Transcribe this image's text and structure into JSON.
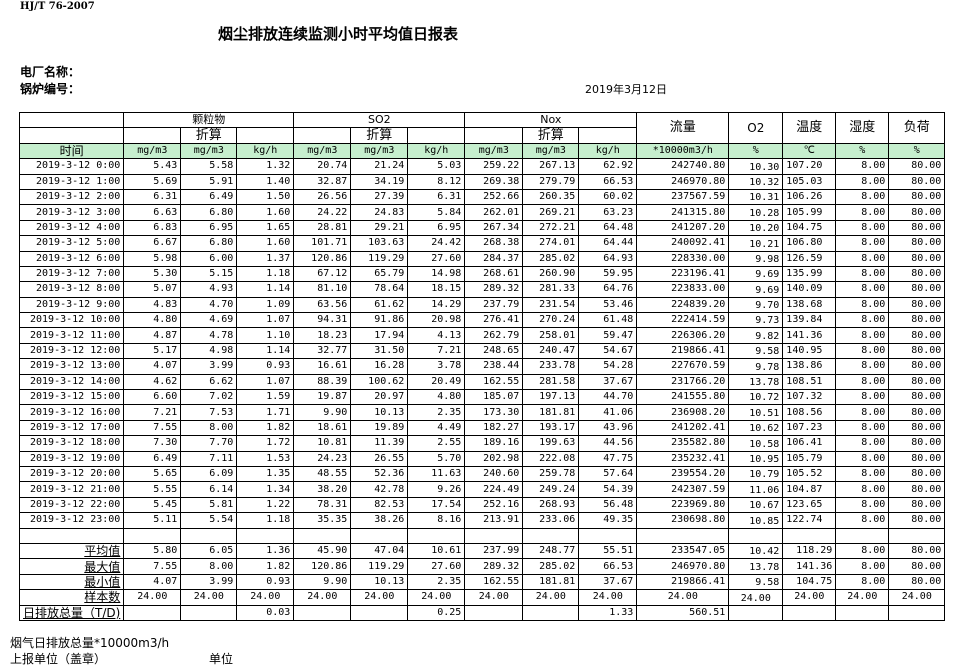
{
  "standard": "HJ/T  76-2007",
  "title": "烟尘排放连续监测小时平均值日报表",
  "plant_label": "电厂名称：",
  "boiler_label": "锅炉编号：",
  "date": "2019年3月12日",
  "header": {
    "particulate": "颗粒物",
    "so2": "SO2",
    "nox": "Nox",
    "converted": "折算",
    "flow": "流量",
    "o2": "O2",
    "temperature": "温度",
    "humidity": "湿度",
    "load": "负荷",
    "time": "时间",
    "units": [
      "mg/m3",
      "mg/m3",
      "kg/h",
      "mg/m3",
      "mg/m3",
      "kg/h",
      "mg/m3",
      "mg/m3",
      "kg/h",
      "*10000m3/h",
      "%",
      "℃",
      "%",
      "%"
    ]
  },
  "rows": [
    [
      "2019-3-12 0:00",
      "5.43",
      "5.58",
      "1.32",
      "20.74",
      "21.24",
      "5.03",
      "259.22",
      "267.13",
      "62.92",
      "242740.80",
      "10.30",
      "107.20",
      "8.00",
      "80.00"
    ],
    [
      "2019-3-12 1:00",
      "5.69",
      "5.91",
      "1.40",
      "32.87",
      "34.19",
      "8.12",
      "269.38",
      "279.79",
      "66.53",
      "246970.80",
      "10.32",
      "105.03",
      "8.00",
      "80.00"
    ],
    [
      "2019-3-12 2:00",
      "6.31",
      "6.49",
      "1.50",
      "26.56",
      "27.39",
      "6.31",
      "252.66",
      "260.35",
      "60.02",
      "237567.59",
      "10.31",
      "106.26",
      "8.00",
      "80.00"
    ],
    [
      "2019-3-12 3:00",
      "6.63",
      "6.80",
      "1.60",
      "24.22",
      "24.83",
      "5.84",
      "262.01",
      "269.21",
      "63.23",
      "241315.80",
      "10.28",
      "105.99",
      "8.00",
      "80.00"
    ],
    [
      "2019-3-12 4:00",
      "6.83",
      "6.95",
      "1.65",
      "28.81",
      "29.21",
      "6.95",
      "267.34",
      "272.21",
      "64.48",
      "241207.20",
      "10.20",
      "104.75",
      "8.00",
      "80.00"
    ],
    [
      "2019-3-12 5:00",
      "6.67",
      "6.80",
      "1.60",
      "101.71",
      "103.63",
      "24.42",
      "268.38",
      "274.01",
      "64.44",
      "240092.41",
      "10.21",
      "106.80",
      "8.00",
      "80.00"
    ],
    [
      "2019-3-12 6:00",
      "5.98",
      "6.00",
      "1.37",
      "120.86",
      "119.29",
      "27.60",
      "284.37",
      "285.02",
      "64.93",
      "228330.00",
      "9.98",
      "126.59",
      "8.00",
      "80.00"
    ],
    [
      "2019-3-12 7:00",
      "5.30",
      "5.15",
      "1.18",
      "67.12",
      "65.79",
      "14.98",
      "268.61",
      "260.90",
      "59.95",
      "223196.41",
      "9.69",
      "135.99",
      "8.00",
      "80.00"
    ],
    [
      "2019-3-12 8:00",
      "5.07",
      "4.93",
      "1.14",
      "81.10",
      "78.64",
      "18.15",
      "289.32",
      "281.33",
      "64.76",
      "223833.00",
      "9.69",
      "140.09",
      "8.00",
      "80.00"
    ],
    [
      "2019-3-12 9:00",
      "4.83",
      "4.70",
      "1.09",
      "63.56",
      "61.62",
      "14.29",
      "237.79",
      "231.54",
      "53.46",
      "224839.20",
      "9.70",
      "138.68",
      "8.00",
      "80.00"
    ],
    [
      "2019-3-12 10:00",
      "4.80",
      "4.69",
      "1.07",
      "94.31",
      "91.86",
      "20.98",
      "276.41",
      "270.24",
      "61.48",
      "222414.59",
      "9.73",
      "139.84",
      "8.00",
      "80.00"
    ],
    [
      "2019-3-12 11:00",
      "4.87",
      "4.78",
      "1.10",
      "18.23",
      "17.94",
      "4.13",
      "262.79",
      "258.01",
      "59.47",
      "226306.20",
      "9.82",
      "141.36",
      "8.00",
      "80.00"
    ],
    [
      "2019-3-12 12:00",
      "5.17",
      "4.98",
      "1.14",
      "32.77",
      "31.50",
      "7.21",
      "248.65",
      "240.47",
      "54.67",
      "219866.41",
      "9.58",
      "140.95",
      "8.00",
      "80.00"
    ],
    [
      "2019-3-12 13:00",
      "4.07",
      "3.99",
      "0.93",
      "16.61",
      "16.28",
      "3.78",
      "238.44",
      "233.78",
      "54.28",
      "227670.59",
      "9.78",
      "138.86",
      "8.00",
      "80.00"
    ],
    [
      "2019-3-12 14:00",
      "4.62",
      "6.62",
      "1.07",
      "88.39",
      "100.62",
      "20.49",
      "162.55",
      "281.58",
      "37.67",
      "231766.20",
      "13.78",
      "108.51",
      "8.00",
      "80.00"
    ],
    [
      "2019-3-12 15:00",
      "6.60",
      "7.02",
      "1.59",
      "19.87",
      "20.97",
      "4.80",
      "185.07",
      "197.13",
      "44.70",
      "241555.80",
      "10.72",
      "107.32",
      "8.00",
      "80.00"
    ],
    [
      "2019-3-12 16:00",
      "7.21",
      "7.53",
      "1.71",
      "9.90",
      "10.13",
      "2.35",
      "173.30",
      "181.81",
      "41.06",
      "236908.20",
      "10.51",
      "108.56",
      "8.00",
      "80.00"
    ],
    [
      "2019-3-12 17:00",
      "7.55",
      "8.00",
      "1.82",
      "18.61",
      "19.89",
      "4.49",
      "182.27",
      "193.17",
      "43.96",
      "241202.41",
      "10.62",
      "107.23",
      "8.00",
      "80.00"
    ],
    [
      "2019-3-12 18:00",
      "7.30",
      "7.70",
      "1.72",
      "10.81",
      "11.39",
      "2.55",
      "189.16",
      "199.63",
      "44.56",
      "235582.80",
      "10.58",
      "106.41",
      "8.00",
      "80.00"
    ],
    [
      "2019-3-12 19:00",
      "6.49",
      "7.11",
      "1.53",
      "24.23",
      "26.55",
      "5.70",
      "202.98",
      "222.08",
      "47.75",
      "235232.41",
      "10.95",
      "105.79",
      "8.00",
      "80.00"
    ],
    [
      "2019-3-12 20:00",
      "5.65",
      "6.09",
      "1.35",
      "48.55",
      "52.36",
      "11.63",
      "240.60",
      "259.78",
      "57.64",
      "239554.20",
      "10.79",
      "105.52",
      "8.00",
      "80.00"
    ],
    [
      "2019-3-12 21:00",
      "5.55",
      "6.14",
      "1.34",
      "38.20",
      "42.78",
      "9.26",
      "224.49",
      "249.24",
      "54.39",
      "242307.59",
      "11.06",
      "104.87",
      "8.00",
      "80.00"
    ],
    [
      "2019-3-12 22:00",
      "5.45",
      "5.81",
      "1.22",
      "78.31",
      "82.53",
      "17.54",
      "252.16",
      "268.93",
      "56.48",
      "223969.80",
      "10.67",
      "123.65",
      "8.00",
      "80.00"
    ],
    [
      "2019-3-12 23:00",
      "5.11",
      "5.54",
      "1.18",
      "35.35",
      "38.26",
      "8.16",
      "213.91",
      "233.06",
      "49.35",
      "230698.80",
      "10.85",
      "122.74",
      "8.00",
      "80.00"
    ]
  ],
  "summary": [
    [
      "平均值",
      "5.80",
      "6.05",
      "1.36",
      "45.90",
      "47.04",
      "10.61",
      "237.99",
      "248.77",
      "55.51",
      "233547.05",
      "10.42",
      "118.29",
      "8.00",
      "80.00"
    ],
    [
      "最大值",
      "7.55",
      "8.00",
      "1.82",
      "120.86",
      "119.29",
      "27.60",
      "289.32",
      "285.02",
      "66.53",
      "246970.80",
      "13.78",
      "141.36",
      "8.00",
      "80.00"
    ],
    [
      "最小值",
      "4.07",
      "3.99",
      "0.93",
      "9.90",
      "10.13",
      "2.35",
      "162.55",
      "181.81",
      "37.67",
      "219866.41",
      "9.58",
      "104.75",
      "8.00",
      "80.00"
    ],
    [
      "样本数",
      "24.00",
      "24.00",
      "24.00",
      "24.00",
      "24.00",
      "24.00",
      "24.00",
      "24.00",
      "24.00",
      "24.00",
      "24.00",
      "24.00",
      "24.00",
      "24.00"
    ],
    [
      "日排放总量（T/D)",
      "",
      "",
      "0.03",
      "",
      "",
      "0.25",
      "",
      "",
      "1.33",
      "560.51",
      "",
      "",
      "",
      ""
    ]
  ],
  "footer": {
    "flue_gas_total": "烟气日排放总量*10000m3/h",
    "reporting_unit": "上报单位（盖章）",
    "unit": "单位"
  }
}
